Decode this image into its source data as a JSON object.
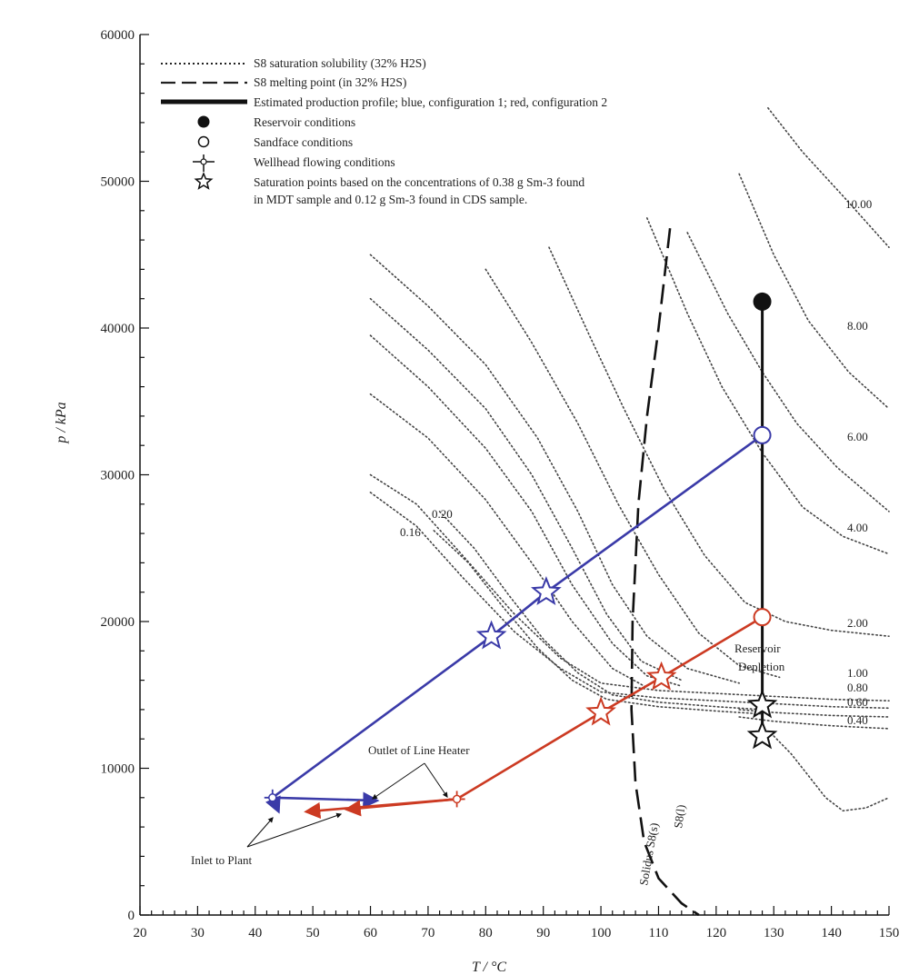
{
  "chart_data": {
    "type": "line",
    "xlabel": "T / °C",
    "ylabel": "p / kPa",
    "xlim": [
      20,
      150
    ],
    "ylim": [
      0,
      60000
    ],
    "x_ticks": [
      "20",
      "30",
      "40",
      "50",
      "60",
      "70",
      "80",
      "90",
      "100",
      "110",
      "120",
      "130",
      "140",
      "150"
    ],
    "y_ticks": [
      "0",
      "10000",
      "20000",
      "30000",
      "40000",
      "50000",
      "60000"
    ],
    "legend": [
      {
        "style": "dotted",
        "text": "S8 saturation solubility (32% H2S)"
      },
      {
        "style": "dashed",
        "text": "S8 melting point (in 32% H2S)"
      },
      {
        "style": "thick",
        "text": "Estimated production profile; blue, configuration 1; red, configuration 2"
      },
      {
        "style": "filled-circle",
        "text": "Reservoir conditions"
      },
      {
        "style": "open-circle",
        "text": "Sandface conditions"
      },
      {
        "style": "wellhead",
        "text": "Wellhead flowing conditions"
      },
      {
        "style": "star",
        "text": "Saturation points based on the concentrations of 0.38 g Sm-3 found"
      },
      {
        "style": "none",
        "text": "in MDT sample and 0.12 g Sm-3 found in CDS sample."
      }
    ],
    "solubility_curves": [
      {
        "label": "10.00",
        "points": [
          [
            129,
            55000
          ],
          [
            135,
            52000
          ],
          [
            142,
            49000
          ],
          [
            150,
            45500
          ]
        ]
      },
      {
        "label": "8.00",
        "points": [
          [
            124,
            50500
          ],
          [
            130,
            45000
          ],
          [
            136,
            40500
          ],
          [
            143,
            37000
          ],
          [
            150,
            34500
          ]
        ]
      },
      {
        "label": "6.00",
        "points": [
          [
            115,
            46500
          ],
          [
            122,
            41000
          ],
          [
            128,
            37000
          ],
          [
            134,
            33500
          ],
          [
            141,
            30500
          ],
          [
            150,
            27500
          ]
        ]
      },
      {
        "label": "4.00",
        "points": [
          [
            108,
            47500
          ],
          [
            115,
            41000
          ],
          [
            121,
            36000
          ],
          [
            128,
            31500
          ],
          [
            135,
            27800
          ],
          [
            142,
            25800
          ],
          [
            150,
            24600
          ]
        ]
      },
      {
        "label": "2.00",
        "points": [
          [
            91,
            45500
          ],
          [
            98,
            39500
          ],
          [
            104,
            34500
          ],
          [
            111,
            29000
          ],
          [
            118,
            24500
          ],
          [
            125,
            21300
          ],
          [
            132,
            20000
          ],
          [
            140,
            19400
          ],
          [
            150,
            19000
          ]
        ]
      },
      {
        "label": "",
        "points": [
          [
            80,
            44000
          ],
          [
            88,
            39000
          ],
          [
            96,
            33500
          ],
          [
            103,
            28000
          ],
          [
            110,
            23200
          ],
          [
            117,
            19200
          ],
          [
            124,
            17000
          ],
          [
            131,
            16200
          ]
        ]
      },
      {
        "label": "",
        "points": [
          [
            60,
            45000
          ],
          [
            70,
            41500
          ],
          [
            80,
            37500
          ],
          [
            89,
            32500
          ],
          [
            96,
            27500
          ],
          [
            102,
            22500
          ],
          [
            108,
            19000
          ],
          [
            115,
            16800
          ],
          [
            124,
            15800
          ]
        ]
      },
      {
        "label": "",
        "points": [
          [
            60,
            42000
          ],
          [
            70,
            38500
          ],
          [
            80,
            34500
          ],
          [
            88,
            30000
          ],
          [
            95,
            25000
          ],
          [
            101,
            20500
          ],
          [
            107,
            17300
          ],
          [
            114,
            16000
          ]
        ]
      },
      {
        "label": "",
        "points": [
          [
            60,
            39500
          ],
          [
            70,
            36000
          ],
          [
            80,
            31800
          ],
          [
            88,
            27500
          ],
          [
            95,
            22500
          ],
          [
            102,
            18500
          ],
          [
            108,
            16300
          ],
          [
            114,
            15600
          ]
        ]
      },
      {
        "label": "",
        "points": [
          [
            60,
            35500
          ],
          [
            70,
            32500
          ],
          [
            80,
            28300
          ],
          [
            88,
            24000
          ],
          [
            95,
            20000
          ],
          [
            102,
            16800
          ],
          [
            108,
            15500
          ]
        ]
      },
      {
        "label": "1.00",
        "points": [
          [
            60,
            30000
          ],
          [
            68,
            28000
          ],
          [
            76,
            24500
          ],
          [
            85,
            20500
          ],
          [
            93,
            17500
          ],
          [
            100,
            15800
          ],
          [
            110,
            15300
          ],
          [
            120,
            15100
          ],
          [
            130,
            14900
          ],
          [
            140,
            14700
          ],
          [
            150,
            14600
          ]
        ]
      },
      {
        "label": "0.80",
        "points": [
          [
            60,
            28800
          ],
          [
            68,
            26500
          ],
          [
            76,
            23000
          ],
          [
            85,
            19300
          ],
          [
            93,
            16800
          ],
          [
            100,
            15200
          ],
          [
            110,
            14800
          ],
          [
            120,
            14600
          ],
          [
            130,
            14400
          ],
          [
            140,
            14200
          ],
          [
            150,
            14100
          ]
        ]
      },
      {
        "label": "0.60",
        "points": [
          [
            124,
            14000
          ],
          [
            130,
            13800
          ],
          [
            140,
            13600
          ],
          [
            150,
            13500
          ]
        ]
      },
      {
        "label": "0.40",
        "points": [
          [
            124,
            13500
          ],
          [
            130,
            13200
          ],
          [
            140,
            12900
          ],
          [
            150,
            12700
          ]
        ]
      },
      {
        "label": "0.20",
        "points": [
          [
            72,
            27500
          ],
          [
            78,
            25000
          ],
          [
            84,
            21800
          ],
          [
            90,
            18800
          ],
          [
            96,
            16500
          ],
          [
            102,
            15000
          ],
          [
            110,
            14500
          ],
          [
            120,
            14200
          ],
          [
            128,
            14000
          ]
        ]
      },
      {
        "label": "0.16",
        "points": [
          [
            71,
            26200
          ],
          [
            77,
            24000
          ],
          [
            83,
            21000
          ],
          [
            89,
            18200
          ],
          [
            95,
            16000
          ],
          [
            101,
            14700
          ],
          [
            110,
            14200
          ],
          [
            120,
            13900
          ],
          [
            128,
            13700
          ]
        ]
      },
      {
        "label": "",
        "points": [
          [
            130,
            12200
          ],
          [
            133,
            11000
          ],
          [
            136,
            9500
          ],
          [
            139,
            8000
          ],
          [
            142,
            7100
          ],
          [
            146,
            7300
          ],
          [
            150,
            8000
          ]
        ]
      }
    ],
    "melting_curve": [
      [
        112,
        46800
      ],
      [
        110,
        40000
      ],
      [
        108,
        34000
      ],
      [
        106.5,
        28000
      ],
      [
        105.5,
        20000
      ],
      [
        105.3,
        14000
      ],
      [
        106,
        9000
      ],
      [
        107.5,
        5000
      ],
      [
        110,
        2500
      ],
      [
        114,
        800
      ],
      [
        117,
        0
      ]
    ],
    "curve_text": [
      "Solidus S8(s)",
      "S8(l)",
      "Reservoir",
      "Depletion"
    ],
    "series": [
      {
        "name": "blue",
        "color": "#3a3aa8",
        "points": [
          [
            128,
            32700
          ],
          [
            90.5,
            22000
          ],
          [
            81,
            19000
          ],
          [
            43,
            8000
          ],
          [
            61,
            7800
          ],
          [
            44,
            7100
          ]
        ],
        "stars": [
          [
            90.5,
            22000
          ],
          [
            81,
            19000
          ]
        ]
      },
      {
        "name": "red",
        "color": "#cc3a22",
        "points": [
          [
            128,
            20300
          ],
          [
            110.5,
            16200
          ],
          [
            100,
            13800
          ],
          [
            75,
            7900
          ],
          [
            56,
            7200
          ],
          [
            49,
            7050
          ]
        ],
        "stars": [
          [
            110.5,
            16200
          ],
          [
            100,
            13800
          ]
        ]
      }
    ],
    "reservoir_line": [
      [
        128,
        41800
      ],
      [
        128,
        32700
      ],
      [
        128,
        20300
      ],
      [
        128,
        12000
      ]
    ],
    "markers": [
      {
        "type": "filled-circle",
        "x": 128,
        "y": 41800
      },
      {
        "type": "open-circle-blue",
        "x": 128,
        "y": 32700
      },
      {
        "type": "open-circle-red",
        "x": 128,
        "y": 20300
      },
      {
        "type": "star",
        "x": 128,
        "y": 14300
      },
      {
        "type": "star",
        "x": 128,
        "y": 12200
      },
      {
        "type": "wellhead-blue",
        "x": 43,
        "y": 8000
      },
      {
        "type": "wellhead-red",
        "x": 75,
        "y": 7900
      }
    ],
    "annotations": [
      {
        "text": "Outlet of Line Heater"
      },
      {
        "text": "Inlet to Plant"
      }
    ],
    "grid": false
  }
}
